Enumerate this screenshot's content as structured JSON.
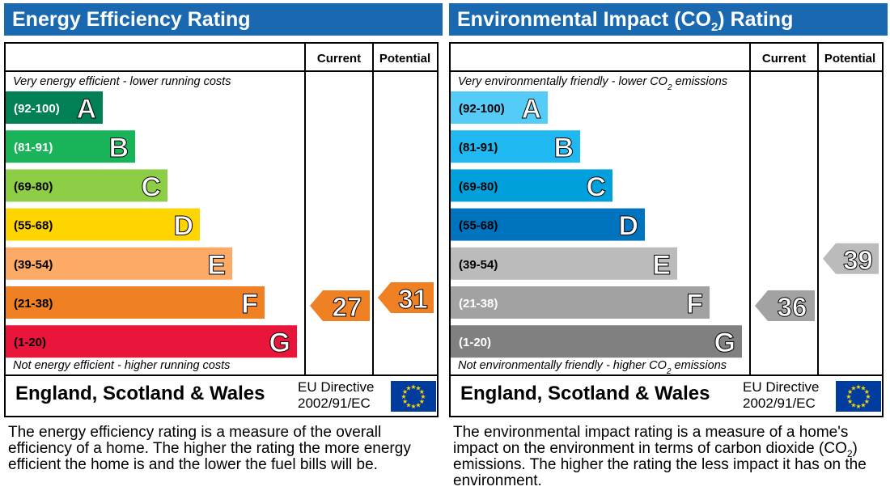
{
  "chart_data": [
    {
      "type": "bar",
      "title": "Energy Efficiency Rating",
      "columns": [
        "Current",
        "Potential"
      ],
      "top_note": "Very energy efficient - lower running costs",
      "bottom_note": "Not energy efficient - higher running costs",
      "bands": [
        {
          "letter": "A",
          "range": "(92-100)",
          "color": "#008054"
        },
        {
          "letter": "B",
          "range": "(81-91)",
          "color": "#19b459"
        },
        {
          "letter": "C",
          "range": "(69-80)",
          "color": "#8dce46"
        },
        {
          "letter": "D",
          "range": "(55-68)",
          "color": "#ffd500"
        },
        {
          "letter": "E",
          "range": "(39-54)",
          "color": "#fcaa65"
        },
        {
          "letter": "F",
          "range": "(21-38)",
          "color": "#ef8023"
        },
        {
          "letter": "G",
          "range": "(1-20)",
          "color": "#e9153b"
        }
      ],
      "current": {
        "value": 27,
        "band": "F",
        "color": "#ef8023"
      },
      "potential": {
        "value": 31,
        "band": "F",
        "color": "#ef8023"
      },
      "region": "England, Scotland & Wales",
      "directive_line1": "EU Directive",
      "directive_line2": "2002/91/EC",
      "flag_icon": "eu-flag-icon",
      "description": "The energy efficiency rating is a measure of the overall efficiency of a home. The higher the rating the more energy efficient the home is and the lower the fuel bills will be."
    },
    {
      "type": "bar",
      "title": "Environmental Impact (CO2) Rating",
      "columns": [
        "Current",
        "Potential"
      ],
      "top_note": "Very environmentally friendly - lower CO2 emissions",
      "bottom_note": "Not environmentally friendly - higher CO2 emissions",
      "bands": [
        {
          "letter": "A",
          "range": "(92-100)",
          "color": "#55ccf7"
        },
        {
          "letter": "B",
          "range": "(81-91)",
          "color": "#1fb8f1"
        },
        {
          "letter": "C",
          "range": "(69-80)",
          "color": "#00a0dc"
        },
        {
          "letter": "D",
          "range": "(55-68)",
          "color": "#0073be"
        },
        {
          "letter": "E",
          "range": "(39-54)",
          "color": "#bbbbbb"
        },
        {
          "letter": "F",
          "range": "(21-38)",
          "color": "#a2a2a2"
        },
        {
          "letter": "G",
          "range": "(1-20)",
          "color": "#808080"
        }
      ],
      "current": {
        "value": 36,
        "band": "F",
        "color": "#a2a2a2"
      },
      "potential": {
        "value": 39,
        "band": "E",
        "color": "#bbbbbb"
      },
      "region": "England, Scotland & Wales",
      "directive_line1": "EU Directive",
      "directive_line2": "2002/91/EC",
      "flag_icon": "eu-flag-icon",
      "description": "The environmental impact rating is a measure of a home's impact on the environment in terms of carbon dioxide (CO2) emissions. The higher the rating the less impact it has on the environment."
    }
  ]
}
